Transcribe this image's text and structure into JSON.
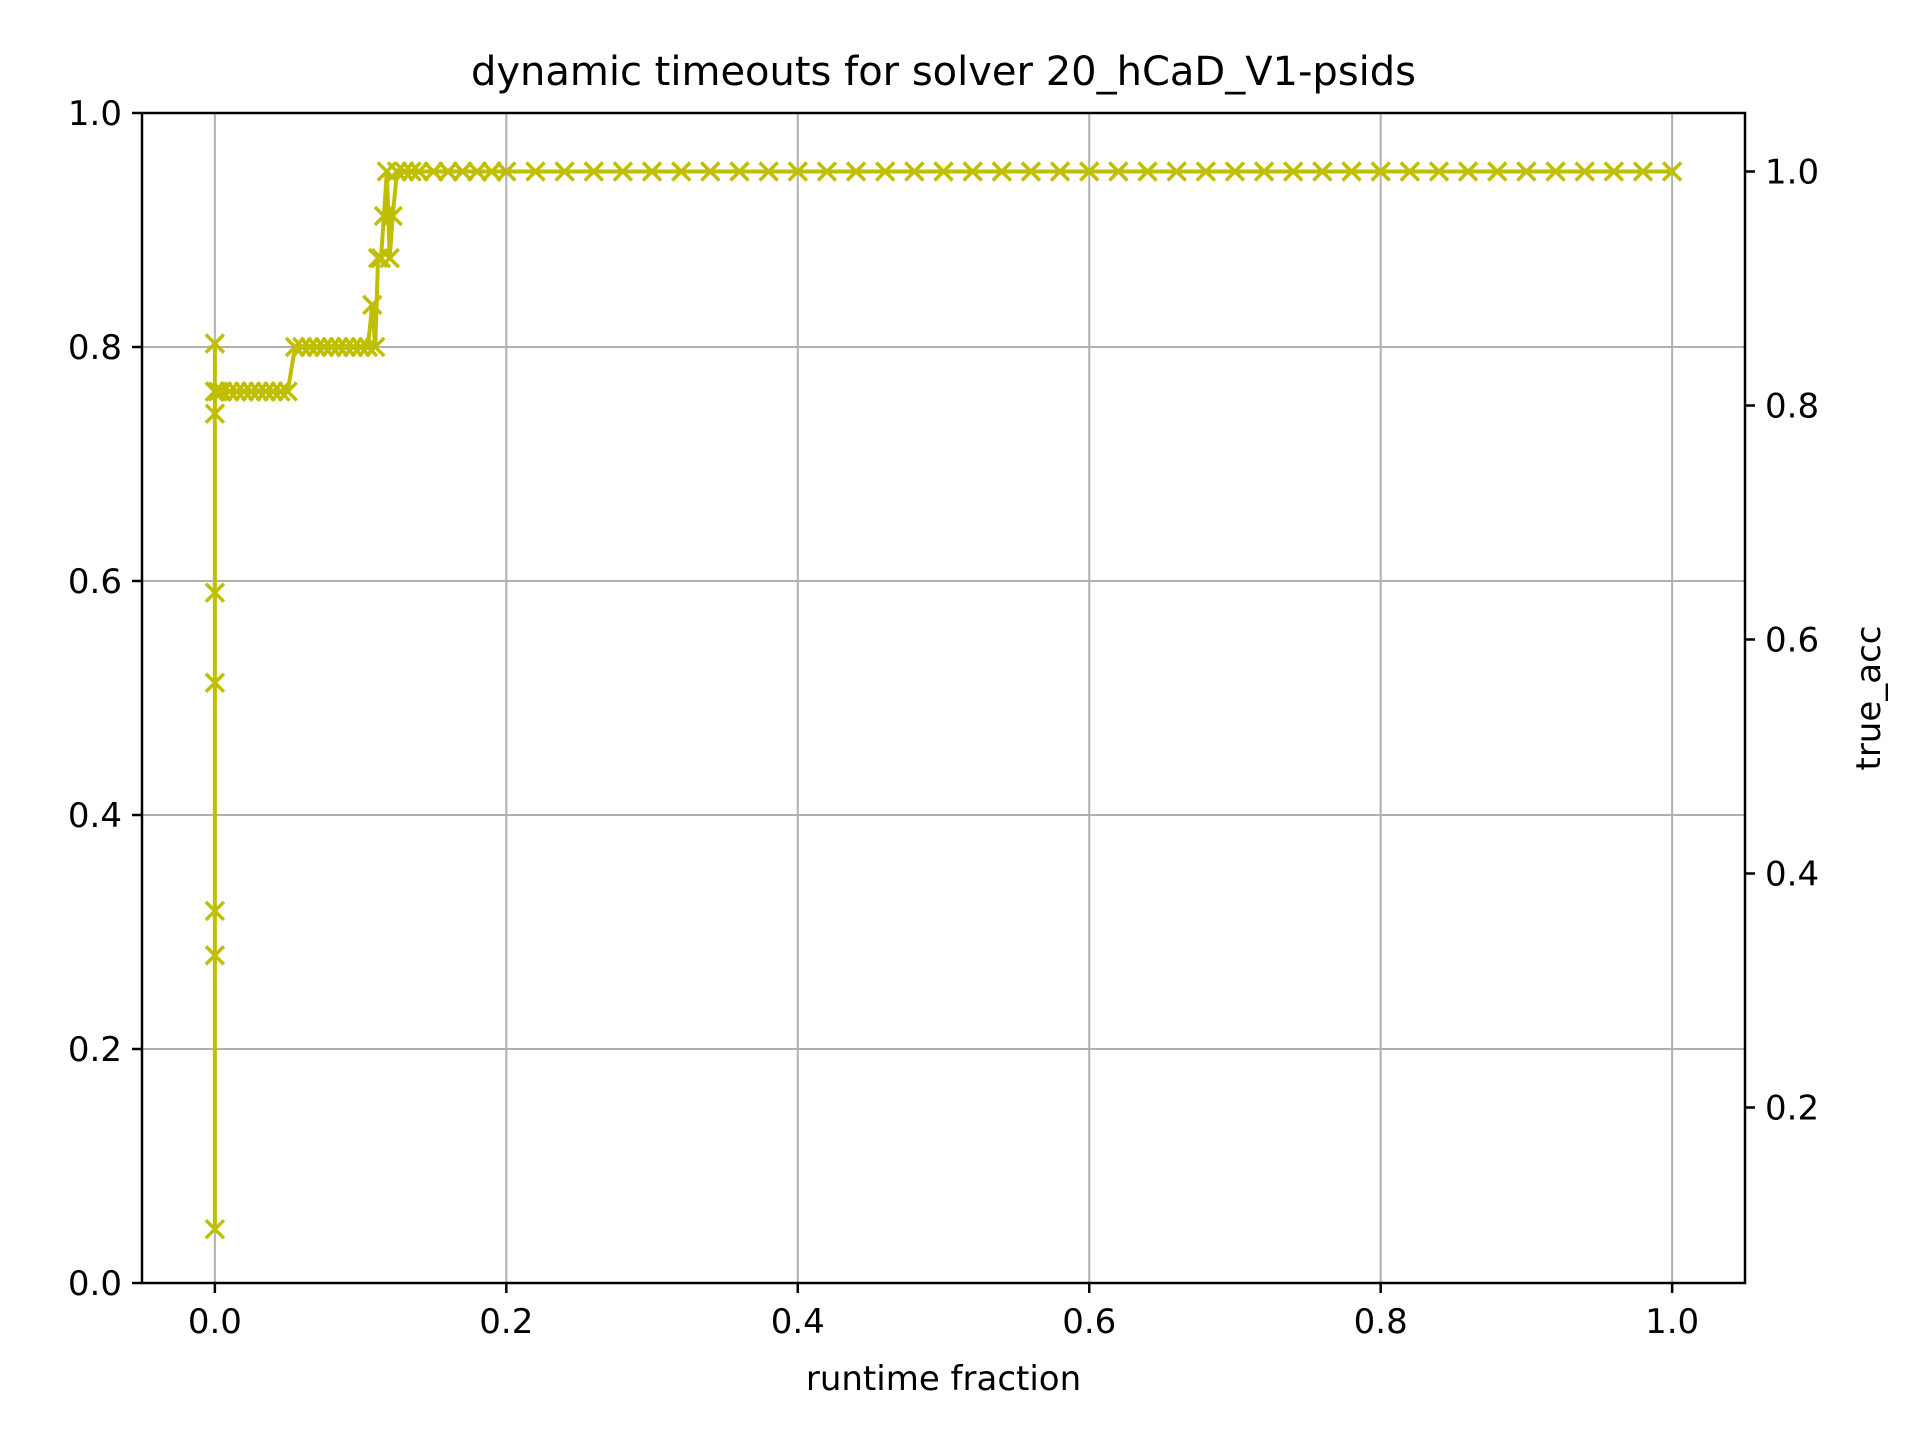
{
  "chart_data": {
    "type": "line",
    "title": "dynamic timeouts for solver 20_hCaD_V1-psids",
    "xlabel": "runtime fraction",
    "ylabel": "",
    "y2label": "true_acc",
    "xlim": [
      -0.05,
      1.05
    ],
    "ylim": [
      0.0,
      1.0
    ],
    "y2lim": [
      0.05,
      1.05
    ],
    "xticks": [
      "0.0",
      "0.2",
      "0.4",
      "0.6",
      "0.8",
      "1.0"
    ],
    "xtick_values": [
      0.0,
      0.2,
      0.4,
      0.6,
      0.8,
      1.0
    ],
    "yticks": [
      "0.0",
      "0.2",
      "0.4",
      "0.6",
      "0.8",
      "1.0"
    ],
    "ytick_values": [
      0.0,
      0.2,
      0.4,
      0.6,
      0.8,
      1.0
    ],
    "y2ticks": [
      "0.2",
      "0.4",
      "0.6",
      "0.8",
      "1.0"
    ],
    "y2tick_values": [
      0.2,
      0.4,
      0.6,
      0.8,
      1.0
    ],
    "grid": true,
    "series": [
      {
        "axis": "right",
        "color": "#bfbf00",
        "marker": "x",
        "x": [
          0.0,
          0.0,
          0.0,
          0.0,
          0.0,
          0.0,
          0.0,
          0.0,
          0.0,
          0.002,
          0.005,
          0.01,
          0.015,
          0.02,
          0.025,
          0.03,
          0.035,
          0.04,
          0.045,
          0.05,
          0.055,
          0.06,
          0.065,
          0.07,
          0.075,
          0.08,
          0.085,
          0.09,
          0.095,
          0.1,
          0.105,
          0.108,
          0.11,
          0.112,
          0.114,
          0.116,
          0.118,
          0.12,
          0.122,
          0.125,
          0.13,
          0.135,
          0.14,
          0.15,
          0.16,
          0.17,
          0.18,
          0.19,
          0.2,
          0.22,
          0.24,
          0.26,
          0.28,
          0.3,
          0.32,
          0.34,
          0.36,
          0.38,
          0.4,
          0.42,
          0.44,
          0.46,
          0.48,
          0.5,
          0.52,
          0.54,
          0.56,
          0.58,
          0.6,
          0.62,
          0.64,
          0.66,
          0.68,
          0.7,
          0.72,
          0.74,
          0.76,
          0.78,
          0.8,
          0.82,
          0.84,
          0.86,
          0.88,
          0.9,
          0.92,
          0.94,
          0.96,
          0.98,
          1.0
        ],
        "y": [
          0.096,
          0.33,
          0.368,
          0.563,
          0.64,
          0.793,
          0.853,
          0.812,
          0.812,
          0.812,
          0.812,
          0.812,
          0.812,
          0.812,
          0.812,
          0.812,
          0.812,
          0.812,
          0.812,
          0.812,
          0.85,
          0.85,
          0.85,
          0.85,
          0.85,
          0.85,
          0.85,
          0.85,
          0.85,
          0.85,
          0.85,
          0.886,
          0.85,
          0.926,
          0.926,
          0.962,
          1.0,
          0.926,
          0.962,
          1.0,
          1.0,
          1.0,
          1.0,
          1.0,
          1.0,
          1.0,
          1.0,
          1.0,
          1.0,
          1.0,
          1.0,
          1.0,
          1.0,
          1.0,
          1.0,
          1.0,
          1.0,
          1.0,
          1.0,
          1.0,
          1.0,
          1.0,
          1.0,
          1.0,
          1.0,
          1.0,
          1.0,
          1.0,
          1.0,
          1.0,
          1.0,
          1.0,
          1.0,
          1.0,
          1.0,
          1.0,
          1.0,
          1.0,
          1.0,
          1.0,
          1.0,
          1.0,
          1.0,
          1.0,
          1.0,
          1.0,
          1.0,
          1.0,
          1.0
        ]
      }
    ],
    "y2label_color": "#ff0000"
  }
}
